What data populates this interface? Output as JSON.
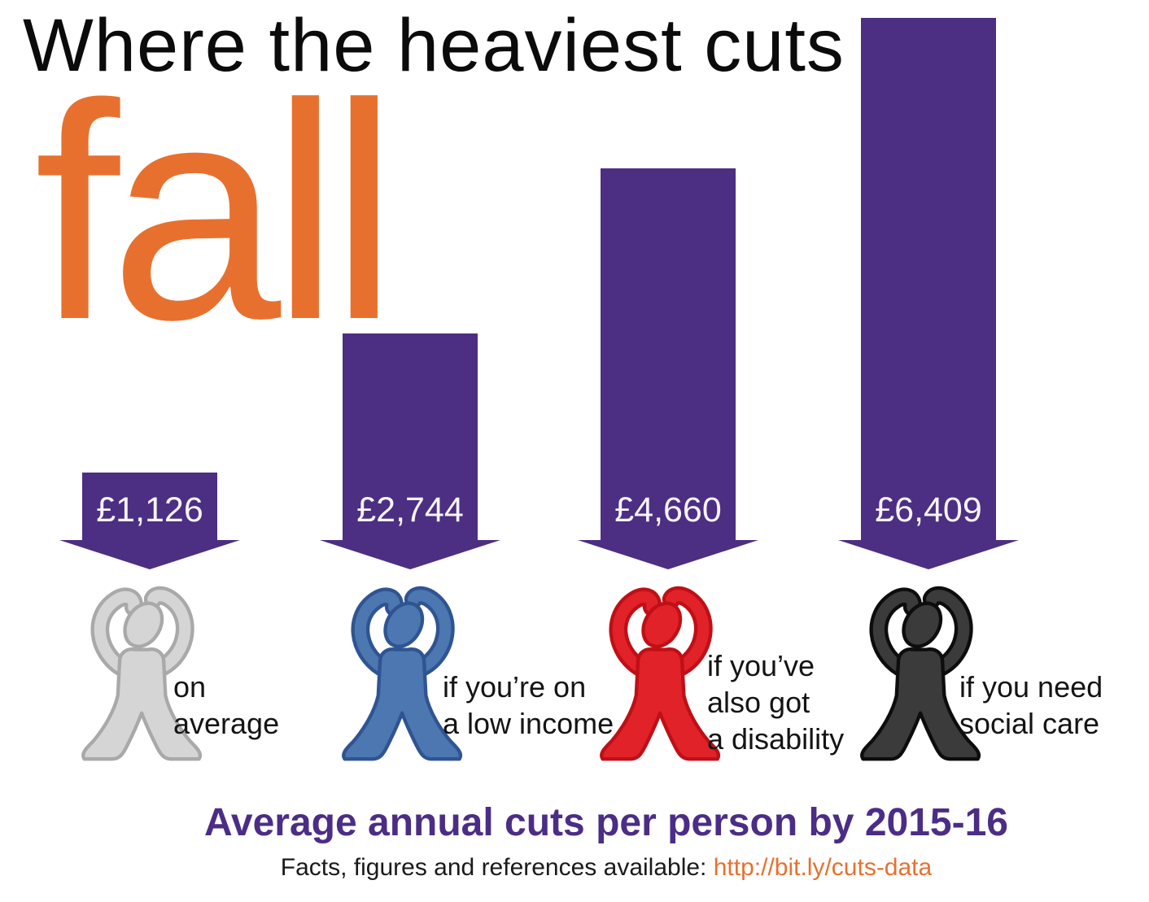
{
  "page": {
    "title_line1": "Where the heaviest cuts",
    "title_line2": "fall",
    "subtitle": "Average annual cuts per person by 2015-16",
    "footer_prefix": "Facts, figures and references available:",
    "footer_link": "http://bit.ly/cuts-data"
  },
  "colors": {
    "arrow_purple": "#4c2e82",
    "subtitle_purple": "#4b2d86",
    "orange": "#e8702e",
    "value_text": "#f7f4fa",
    "label_text": "#141414"
  },
  "chart_data": {
    "type": "bar",
    "title": "Where the heaviest cuts fall",
    "subtitle": "Average annual cuts per person by 2015-16",
    "unit": "£ average annual cut per person",
    "orientation": "downward-arrows",
    "bar_color": "#4c2e82",
    "ylim": [
      0,
      6409
    ],
    "categories": [
      "on average",
      "if you’re on a low income",
      "if you’ve also got a disability",
      "if you need social care"
    ],
    "values": [
      1126,
      2744,
      4660,
      6409
    ],
    "value_labels": [
      "£1,126",
      "£2,744",
      "£4,660",
      "£6,409"
    ],
    "figures": [
      {
        "name": "person-average",
        "fill": "#d5d5d5",
        "outline": "#a9a9a9",
        "label_lines": [
          "on",
          "average"
        ]
      },
      {
        "name": "person-low-income",
        "fill": "#4c77b0",
        "outline": "#2f5492",
        "label_lines": [
          "if you’re on",
          "a low income"
        ]
      },
      {
        "name": "person-disability",
        "fill": "#e12228",
        "outline": "#c00f16",
        "label_lines": [
          "if you’ve",
          "also got",
          "a disability"
        ]
      },
      {
        "name": "person-social-care",
        "fill": "#3b3b3b",
        "outline": "#0d0d0d",
        "label_lines": [
          "if you need",
          "social care"
        ]
      }
    ]
  }
}
